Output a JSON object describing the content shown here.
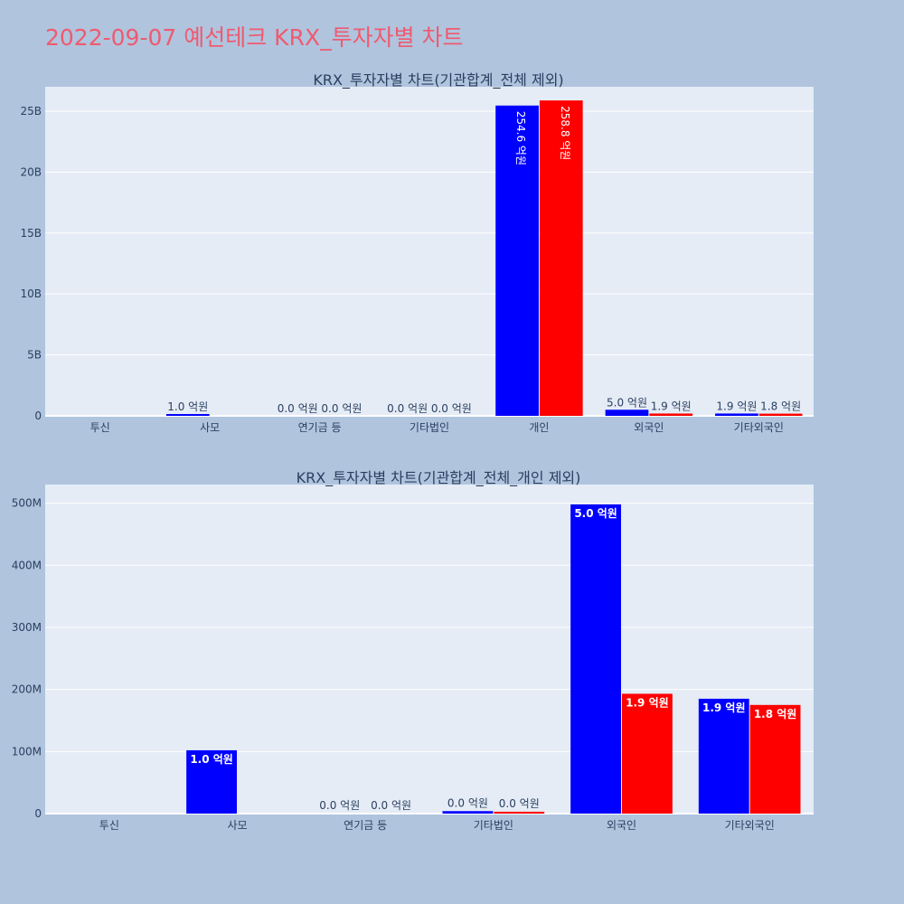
{
  "title": "2022-09-07 예선테크 KRX_투자자별 차트",
  "colors": {
    "background": "#b0c4de",
    "plot_bg": "#e5ecf6",
    "title": "#ef5a6f",
    "buy": "#0000ff",
    "sell": "#ff0000",
    "text": "#2a3f5f"
  },
  "chart_data": [
    {
      "type": "bar",
      "title": "KRX_투자자별 차트(기관합계_전체 제외)",
      "categories": [
        "투신",
        "사모",
        "연기금 등",
        "기타법인",
        "개인",
        "외국인",
        "기타외국인"
      ],
      "ylim": [
        0,
        27000000000
      ],
      "yticks": [
        0,
        5000000000,
        10000000000,
        15000000000,
        20000000000,
        25000000000
      ],
      "ytick_labels": [
        "0",
        "5B",
        "10B",
        "15B",
        "20B",
        "25B"
      ],
      "grid": true,
      "series": [
        {
          "color": "#0000ff",
          "values": [
            0,
            100000000,
            0,
            0,
            25460000000,
            500000000,
            190000000
          ],
          "labels": [
            "",
            "1.0 억원",
            "0.0 억원",
            "0.0 억원",
            "254.6 억원",
            "5.0 억원",
            "1.9 억원"
          ]
        },
        {
          "color": "#ff0000",
          "values": [
            0,
            0,
            0,
            0,
            25880000000,
            190000000,
            180000000
          ],
          "labels": [
            "",
            "",
            "0.0 억원",
            "0.0 억원",
            "258.8 억원",
            "1.9 억원",
            "1.8 억원"
          ]
        }
      ]
    },
    {
      "type": "bar",
      "title": "KRX_투자자별 차트(기관합계_전체_개인 제외)",
      "categories": [
        "투신",
        "사모",
        "연기금 등",
        "기타법인",
        "외국인",
        "기타외국인"
      ],
      "ylim": [
        0,
        530000000
      ],
      "yticks": [
        0,
        100000000,
        200000000,
        300000000,
        400000000,
        500000000
      ],
      "ytick_labels": [
        "0",
        "100M",
        "200M",
        "300M",
        "400M",
        "500M"
      ],
      "grid": true,
      "series": [
        {
          "color": "#0000ff",
          "values": [
            0,
            102000000,
            0,
            4000000,
            498000000,
            185000000
          ],
          "labels": [
            "",
            "1.0 억원",
            "0.0 억원",
            "0.0 억원",
            "5.0 억원",
            "1.9 억원"
          ]
        },
        {
          "color": "#ff0000",
          "values": [
            0,
            0,
            0,
            3000000,
            193000000,
            175000000
          ],
          "labels": [
            "",
            "",
            "0.0 억원",
            "0.0 억원",
            "1.9 억원",
            "1.8 억원"
          ]
        }
      ]
    }
  ]
}
